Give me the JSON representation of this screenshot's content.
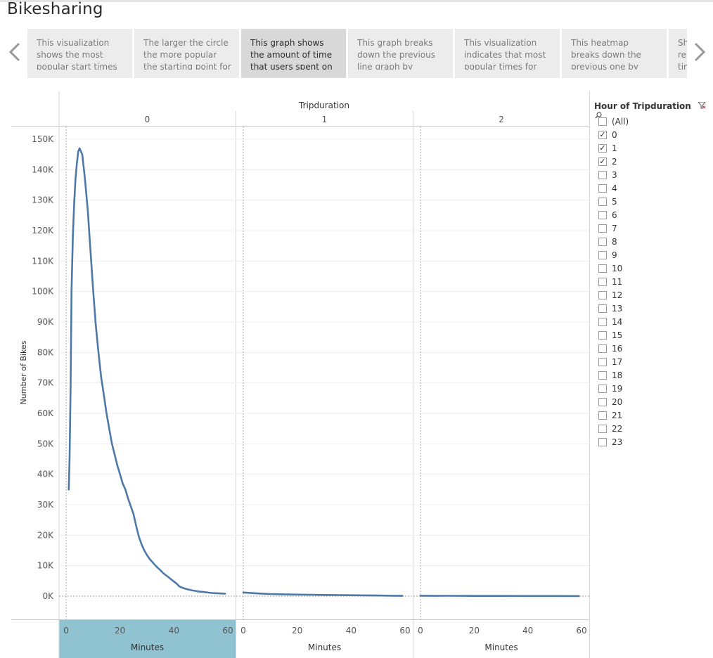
{
  "app": {
    "title": "Bikesharing"
  },
  "story": {
    "prev_icon": "chevron-left-icon",
    "next_icon": "chevron-right-icon",
    "points": [
      {
        "text": "This visualization shows the most popular start times"
      },
      {
        "text": "The larger the circle the more popular the starting point for"
      },
      {
        "text": "This graph shows the amount of time that users spent on a ride."
      },
      {
        "text": "This graph breaks down the previous line graph by gender."
      },
      {
        "text": "This visualization indicates that most popular times for"
      },
      {
        "text": "This heatmap breaks down the previous one by gender."
      },
      {
        "text": "Sh rep tim"
      }
    ],
    "active_index": 2
  },
  "legend": {
    "title": "Hour of Tripduration",
    "filter_icon": "filter-clear-icon",
    "search_icon": "search-icon",
    "items": [
      {
        "label": "(All)",
        "checked": false
      },
      {
        "label": "0",
        "checked": true
      },
      {
        "label": "1",
        "checked": true
      },
      {
        "label": "2",
        "checked": true
      },
      {
        "label": "3",
        "checked": false
      },
      {
        "label": "4",
        "checked": false
      },
      {
        "label": "5",
        "checked": false
      },
      {
        "label": "6",
        "checked": false
      },
      {
        "label": "7",
        "checked": false
      },
      {
        "label": "8",
        "checked": false
      },
      {
        "label": "9",
        "checked": false
      },
      {
        "label": "10",
        "checked": false
      },
      {
        "label": "11",
        "checked": false
      },
      {
        "label": "12",
        "checked": false
      },
      {
        "label": "13",
        "checked": false
      },
      {
        "label": "14",
        "checked": false
      },
      {
        "label": "15",
        "checked": false
      },
      {
        "label": "16",
        "checked": false
      },
      {
        "label": "17",
        "checked": false
      },
      {
        "label": "18",
        "checked": false
      },
      {
        "label": "19",
        "checked": false
      },
      {
        "label": "20",
        "checked": false
      },
      {
        "label": "21",
        "checked": false
      },
      {
        "label": "22",
        "checked": false
      },
      {
        "label": "23",
        "checked": false
      }
    ]
  },
  "chart_data": {
    "type": "line",
    "column_header": "Tripduration",
    "ylabel": "Number of Bikes",
    "xlabel": "Minutes",
    "ylim": [
      0,
      150000
    ],
    "yticks": [
      0,
      10000,
      20000,
      30000,
      40000,
      50000,
      60000,
      70000,
      80000,
      90000,
      100000,
      110000,
      120000,
      130000,
      140000,
      150000
    ],
    "ytick_labels": [
      "0K",
      "10K",
      "20K",
      "30K",
      "40K",
      "50K",
      "60K",
      "70K",
      "80K",
      "90K",
      "100K",
      "110K",
      "120K",
      "130K",
      "140K",
      "150K"
    ],
    "xlim": [
      0,
      60
    ],
    "xticks": [
      0,
      20,
      40,
      60
    ],
    "grid": true,
    "line_color": "#4e79a7",
    "highlight_color": "#8fc3d1",
    "panels": [
      {
        "header": "0",
        "x": [
          1,
          1.3,
          1.7,
          2,
          2.5,
          3,
          3.5,
          4,
          4.5,
          5,
          5.5,
          6,
          6.5,
          7,
          8,
          9,
          10,
          11,
          12,
          13,
          14,
          15,
          16,
          17,
          18,
          19,
          20,
          21,
          22,
          23,
          24,
          25,
          26,
          27,
          28,
          29,
          30,
          31,
          32,
          33,
          34,
          35,
          36,
          37,
          38,
          39,
          40,
          41,
          42,
          43,
          44,
          45,
          46,
          47,
          48,
          49,
          50,
          51,
          52,
          53,
          54,
          55,
          56,
          57,
          58,
          59
        ],
        "y": [
          35000,
          46000,
          70000,
          100000,
          118000,
          129000,
          137000,
          142000,
          146000,
          147000,
          146000,
          145000,
          141000,
          137000,
          127000,
          114000,
          101000,
          89000,
          80000,
          72000,
          66000,
          60000,
          55000,
          50000,
          46500,
          43000,
          40000,
          37000,
          35000,
          32000,
          29500,
          27000,
          23000,
          19500,
          17000,
          15000,
          13500,
          12200,
          11200,
          10200,
          9300,
          8500,
          7600,
          6900,
          6200,
          5500,
          4800,
          4100,
          3200,
          2800,
          2500,
          2250,
          2050,
          1850,
          1700,
          1550,
          1450,
          1350,
          1250,
          1150,
          1050,
          1000,
          950,
          900,
          850,
          800
        ]
      },
      {
        "header": "1",
        "x": [
          0,
          5,
          10,
          15,
          20,
          25,
          30,
          35,
          40,
          45,
          50,
          55,
          59
        ],
        "y": [
          1200,
          900,
          700,
          600,
          500,
          450,
          400,
          350,
          300,
          250,
          200,
          150,
          100
        ]
      },
      {
        "header": "2",
        "x": [
          0,
          5,
          10,
          20,
          30,
          40,
          50,
          59
        ],
        "y": [
          150,
          100,
          120,
          80,
          60,
          50,
          40,
          30
        ]
      }
    ]
  }
}
